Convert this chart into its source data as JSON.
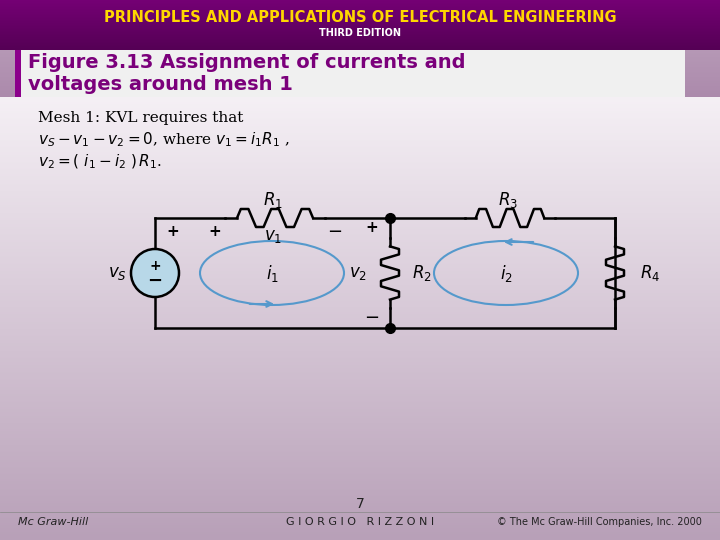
{
  "title_main": "PRINCIPLES AND APPLICATIONS OF ELECTRICAL ENGINEERING",
  "title_sub": "THIRD EDITION",
  "header_bg_top": "#3D003D",
  "header_bg_bottom": "#8B008B",
  "header_text_color": "#FFD700",
  "sub_text_color": "#FFFFFF",
  "fig_title_line1": "Figure 3.13 Assignment of currents and",
  "fig_title_line2": "voltages around mesh 1",
  "fig_title_color": "#7B007B",
  "fig_title_bg_left": "#FFFFFF",
  "fig_title_bg_right": "#C8A8C8",
  "body_bg_top": "#C8A8C8",
  "body_bg_bottom": "#D8D0D8",
  "circuit_color": "#000000",
  "mesh_arrow_color": "#5599CC",
  "source_fill": "#B8D8E8",
  "text_color": "#000000",
  "footer_left": "Mc Graw-Hill",
  "footer_center": "G I O R G I O   R I Z Z O N I",
  "footer_right": "© The Mc Graw-Hill Companies, Inc. 2000",
  "page_number": "7",
  "kvl_line0": "Mesh 1: KVL requires that",
  "kvl_line1": "$v_S\\, -\\, v_1\\, -\\, v_2\\, =0$, where $v_1=i_1R_1$ ,",
  "kvl_line2": "$v_2 =(\\, i_1 - i_2\\,)\\,R_1$."
}
